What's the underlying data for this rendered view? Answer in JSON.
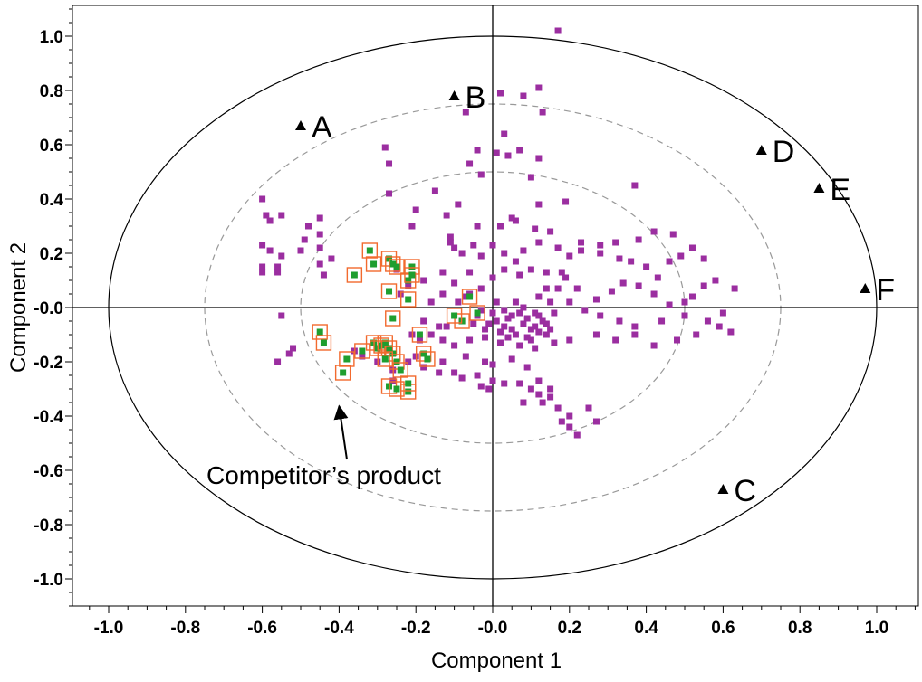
{
  "chart_data": {
    "type": "scatter",
    "title": "",
    "xlabel": "Component 1",
    "ylabel": "Component 2",
    "xlim": [
      -1.1,
      1.1
    ],
    "ylim": [
      -1.1,
      1.1
    ],
    "x_ticks": [
      "-1.0",
      "-0.8",
      "-0.6",
      "-0.4",
      "-0.2",
      "-0.0",
      "0.2",
      "0.4",
      "0.6",
      "0.8",
      "1.0"
    ],
    "y_ticks": [
      "1.0",
      "0.8",
      "0.6",
      "0.4",
      "0.2",
      "-0.0",
      "-0.2",
      "-0.4",
      "-0.6",
      "-0.8",
      "-1.0"
    ],
    "grid": false,
    "circles": [
      {
        "style": "solid",
        "color": "#000000",
        "rx": 1.0,
        "ry": 1.0
      },
      {
        "style": "dashed",
        "color": "#999999",
        "rx": 0.75,
        "ry": 0.75
      },
      {
        "style": "dashed",
        "color": "#999999",
        "rx": 0.5,
        "ry": 0.5
      }
    ],
    "reference_points": [
      {
        "label": "A",
        "x": -0.5,
        "y": 0.67
      },
      {
        "label": "B",
        "x": -0.1,
        "y": 0.78
      },
      {
        "label": "C",
        "x": 0.6,
        "y": -0.67
      },
      {
        "label": "D",
        "x": 0.7,
        "y": 0.58
      },
      {
        "label": "E",
        "x": 0.85,
        "y": 0.44
      },
      {
        "label": "F",
        "x": 0.97,
        "y": 0.07
      }
    ],
    "series": [
      {
        "color": "#9b2ea0",
        "marker": "square",
        "points": [
          [
            0.17,
            1.02
          ],
          [
            0.12,
            0.81
          ],
          [
            0.02,
            0.79
          ],
          [
            0.08,
            0.78
          ],
          [
            0.13,
            0.72
          ],
          [
            -0.07,
            0.72
          ],
          [
            0.03,
            0.64
          ],
          [
            0.01,
            0.57
          ],
          [
            -0.04,
            0.58
          ],
          [
            0.07,
            0.58
          ],
          [
            0.12,
            0.55
          ],
          [
            0.04,
            0.56
          ],
          [
            -0.28,
            0.59
          ],
          [
            -0.27,
            0.53
          ],
          [
            -0.06,
            0.53
          ],
          [
            -0.27,
            0.42
          ],
          [
            -0.15,
            0.43
          ],
          [
            -0.03,
            0.49
          ],
          [
            0.1,
            0.48
          ],
          [
            0.12,
            0.38
          ],
          [
            0.19,
            0.39
          ],
          [
            0.37,
            0.45
          ],
          [
            0.05,
            0.33
          ],
          [
            0.02,
            0.3
          ],
          [
            0.06,
            0.32
          ],
          [
            0.11,
            0.29
          ],
          [
            -0.04,
            0.3
          ],
          [
            -0.21,
            0.3
          ],
          [
            -0.2,
            0.36
          ],
          [
            -0.12,
            0.34
          ],
          [
            -0.09,
            0.38
          ],
          [
            -0.11,
            0.26
          ],
          [
            -0.1,
            0.22
          ],
          [
            -0.45,
            0.33
          ],
          [
            -0.48,
            0.3
          ],
          [
            -0.55,
            0.34
          ],
          [
            -0.6,
            0.4
          ],
          [
            -0.59,
            0.34
          ],
          [
            -0.58,
            0.32
          ],
          [
            -0.6,
            0.23
          ],
          [
            -0.58,
            0.21
          ],
          [
            -0.55,
            0.19
          ],
          [
            -0.6,
            0.15
          ],
          [
            -0.6,
            0.13
          ],
          [
            -0.56,
            0.15
          ],
          [
            -0.56,
            0.13
          ],
          [
            -0.49,
            0.25
          ],
          [
            -0.5,
            0.21
          ],
          [
            -0.45,
            0.22
          ],
          [
            -0.42,
            0.18
          ],
          [
            -0.44,
            0.12
          ],
          [
            -0.45,
            0.16
          ],
          [
            -0.45,
            0.27
          ],
          [
            -0.55,
            -0.03
          ],
          [
            -0.11,
            0.24
          ],
          [
            -0.08,
            0.2
          ],
          [
            -0.05,
            0.23
          ],
          [
            -0.03,
            0.19
          ],
          [
            0.0,
            0.23
          ],
          [
            0.03,
            0.2
          ],
          [
            0.06,
            0.17
          ],
          [
            0.08,
            0.21
          ],
          [
            0.12,
            0.24
          ],
          [
            0.15,
            0.28
          ],
          [
            0.17,
            0.22
          ],
          [
            0.2,
            0.19
          ],
          [
            0.23,
            0.21
          ],
          [
            0.28,
            0.2
          ],
          [
            0.33,
            0.18
          ],
          [
            0.36,
            0.17
          ],
          [
            0.4,
            0.15
          ],
          [
            0.43,
            0.11
          ],
          [
            0.46,
            0.17
          ],
          [
            0.49,
            0.19
          ],
          [
            0.52,
            0.22
          ],
          [
            0.47,
            0.27
          ],
          [
            0.42,
            0.28
          ],
          [
            0.38,
            0.25
          ],
          [
            0.32,
            0.24
          ],
          [
            0.28,
            0.23
          ],
          [
            0.23,
            0.24
          ],
          [
            0.55,
            0.18
          ],
          [
            0.58,
            0.1
          ],
          [
            0.55,
            0.08
          ],
          [
            0.52,
            0.04
          ],
          [
            0.5,
            0.02
          ],
          [
            0.46,
            0.01
          ],
          [
            0.42,
            0.05
          ],
          [
            0.38,
            0.08
          ],
          [
            0.34,
            0.09
          ],
          [
            0.31,
            0.06
          ],
          [
            0.27,
            0.03
          ],
          [
            0.22,
            0.07
          ],
          [
            0.19,
            0.11
          ],
          [
            0.14,
            0.13
          ],
          [
            0.1,
            0.14
          ],
          [
            0.07,
            0.12
          ],
          [
            0.03,
            0.14
          ],
          [
            0.0,
            0.11
          ],
          [
            -0.03,
            0.07
          ],
          [
            -0.07,
            0.04
          ],
          [
            -0.1,
            0.09
          ],
          [
            -0.13,
            0.13
          ],
          [
            -0.06,
            0.13
          ],
          [
            0.14,
            0.07
          ],
          [
            0.12,
            0.04
          ],
          [
            0.15,
            0.02
          ],
          [
            0.16,
            -0.02
          ],
          [
            0.17,
            0.07
          ],
          [
            0.18,
            0.13
          ],
          [
            0.2,
            0.02
          ],
          [
            0.24,
            -0.01
          ],
          [
            0.28,
            -0.03
          ],
          [
            0.33,
            -0.05
          ],
          [
            0.37,
            -0.07
          ],
          [
            0.44,
            -0.05
          ],
          [
            0.5,
            -0.03
          ],
          [
            0.56,
            -0.05
          ],
          [
            0.59,
            -0.07
          ],
          [
            0.62,
            -0.09
          ],
          [
            0.63,
            0.07
          ],
          [
            0.6,
            -0.02
          ],
          [
            0.53,
            -0.1
          ],
          [
            0.48,
            -0.12
          ],
          [
            0.42,
            -0.14
          ],
          [
            0.37,
            -0.1
          ],
          [
            0.32,
            -0.12
          ],
          [
            0.27,
            -0.1
          ],
          [
            0.2,
            -0.12
          ],
          [
            0.16,
            -0.13
          ],
          [
            0.11,
            -0.15
          ],
          [
            0.07,
            -0.14
          ],
          [
            0.02,
            -0.13
          ],
          [
            -0.02,
            -0.11
          ],
          [
            -0.06,
            -0.12
          ],
          [
            -0.1,
            -0.14
          ],
          [
            -0.13,
            -0.12
          ],
          [
            -0.16,
            -0.1
          ],
          [
            -0.12,
            -0.07
          ],
          [
            -0.08,
            -0.05
          ],
          [
            -0.04,
            -0.03
          ],
          [
            0.0,
            -0.02
          ],
          [
            0.04,
            -0.04
          ],
          [
            0.08,
            -0.06
          ],
          [
            0.1,
            -0.08
          ],
          [
            0.13,
            -0.05
          ],
          [
            0.05,
            -0.08
          ],
          [
            0.03,
            -0.07
          ],
          [
            -0.01,
            -0.06
          ],
          [
            0.06,
            -0.1
          ],
          [
            0.09,
            -0.11
          ],
          [
            0.12,
            -0.09
          ],
          [
            0.14,
            -0.1
          ],
          [
            0.07,
            -0.02
          ],
          [
            0.02,
            -0.09
          ],
          [
            0.09,
            -0.04
          ],
          [
            0.11,
            -0.02
          ],
          [
            0.04,
            -0.11
          ],
          [
            0.1,
            -0.12
          ],
          [
            -0.02,
            -0.2
          ],
          [
            -0.07,
            -0.18
          ],
          [
            -0.13,
            -0.2
          ],
          [
            -0.1,
            -0.24
          ],
          [
            -0.04,
            -0.25
          ],
          [
            0.0,
            -0.21
          ],
          [
            0.05,
            -0.19
          ],
          [
            0.09,
            -0.22
          ],
          [
            0.12,
            -0.27
          ],
          [
            0.1,
            -0.3
          ],
          [
            0.12,
            -0.32
          ],
          [
            0.15,
            -0.3
          ],
          [
            0.13,
            -0.35
          ],
          [
            0.17,
            -0.37
          ],
          [
            0.18,
            -0.42
          ],
          [
            0.2,
            -0.44
          ],
          [
            0.22,
            -0.47
          ],
          [
            0.2,
            -0.4
          ],
          [
            0.25,
            -0.37
          ],
          [
            0.27,
            -0.42
          ],
          [
            0.15,
            -0.33
          ],
          [
            0.08,
            -0.35
          ],
          [
            0.07,
            -0.28
          ],
          [
            0.03,
            -0.28
          ],
          [
            -0.01,
            -0.3
          ],
          [
            0.0,
            -0.27
          ],
          [
            -0.03,
            -0.29
          ],
          [
            -0.08,
            -0.26
          ],
          [
            -0.14,
            -0.24
          ],
          [
            -0.18,
            -0.22
          ],
          [
            -0.2,
            -0.18
          ],
          [
            -0.22,
            -0.2
          ],
          [
            -0.26,
            -0.23
          ],
          [
            -0.3,
            -0.2
          ],
          [
            -0.34,
            -0.18
          ],
          [
            -0.36,
            -0.16
          ],
          [
            -0.26,
            -0.27
          ],
          [
            -0.14,
            -0.07
          ],
          [
            -0.18,
            -0.05
          ],
          [
            -0.19,
            -0.12
          ],
          [
            -0.21,
            -0.1
          ],
          [
            -0.16,
            0.02
          ],
          [
            -0.13,
            0.05
          ],
          [
            -0.24,
            0.05
          ],
          [
            -0.22,
            0.08
          ],
          [
            -0.25,
            0.14
          ],
          [
            -0.18,
            0.1
          ],
          [
            -0.09,
            0.02
          ],
          [
            -0.06,
            0.05
          ],
          [
            -0.03,
            -0.01
          ],
          [
            -0.05,
            -0.06
          ],
          [
            0.01,
            0.02
          ],
          [
            0.03,
            -0.01
          ],
          [
            0.06,
            0.02
          ],
          [
            0.01,
            -0.05
          ],
          [
            -0.02,
            -0.08
          ],
          [
            0.05,
            -0.03
          ],
          [
            0.08,
            0.0
          ],
          [
            0.12,
            -0.03
          ],
          [
            0.14,
            -0.06
          ],
          [
            0.11,
            -0.07
          ],
          [
            0.15,
            -0.08
          ],
          [
            -0.53,
            -0.17
          ],
          [
            -0.56,
            -0.2
          ],
          [
            -0.52,
            -0.15
          ]
        ]
      },
      {
        "name": "Competitor's product",
        "color": "#1f9e2f",
        "marker": "square",
        "outline_color": "#f26a2e",
        "points": [
          [
            -0.32,
            0.21
          ],
          [
            -0.31,
            0.16
          ],
          [
            -0.27,
            0.18
          ],
          [
            -0.26,
            0.16
          ],
          [
            -0.25,
            0.15
          ],
          [
            -0.36,
            0.12
          ],
          [
            -0.21,
            0.15
          ],
          [
            -0.22,
            0.1
          ],
          [
            -0.21,
            0.12
          ],
          [
            -0.27,
            0.06
          ],
          [
            -0.22,
            0.03
          ],
          [
            -0.26,
            -0.04
          ],
          [
            -0.08,
            -0.05
          ],
          [
            -0.06,
            0.04
          ],
          [
            -0.04,
            -0.02
          ],
          [
            -0.1,
            -0.03
          ],
          [
            -0.45,
            -0.09
          ],
          [
            -0.44,
            -0.13
          ],
          [
            -0.38,
            -0.19
          ],
          [
            -0.39,
            -0.24
          ],
          [
            -0.34,
            -0.16
          ],
          [
            -0.31,
            -0.13
          ],
          [
            -0.3,
            -0.15
          ],
          [
            -0.29,
            -0.14
          ],
          [
            -0.28,
            -0.13
          ],
          [
            -0.27,
            -0.15
          ],
          [
            -0.26,
            -0.17
          ],
          [
            -0.28,
            -0.19
          ],
          [
            -0.25,
            -0.2
          ],
          [
            -0.24,
            -0.23
          ],
          [
            -0.19,
            -0.1
          ],
          [
            -0.18,
            -0.17
          ],
          [
            -0.17,
            -0.19
          ],
          [
            -0.27,
            -0.29
          ],
          [
            -0.25,
            -0.3
          ],
          [
            -0.22,
            -0.31
          ],
          [
            -0.22,
            -0.28
          ]
        ]
      }
    ],
    "annotations": [
      {
        "text": "Competitor’s product",
        "x": -0.75,
        "y": -0.62,
        "arrow_to": [
          -0.4,
          -0.35
        ]
      }
    ]
  }
}
